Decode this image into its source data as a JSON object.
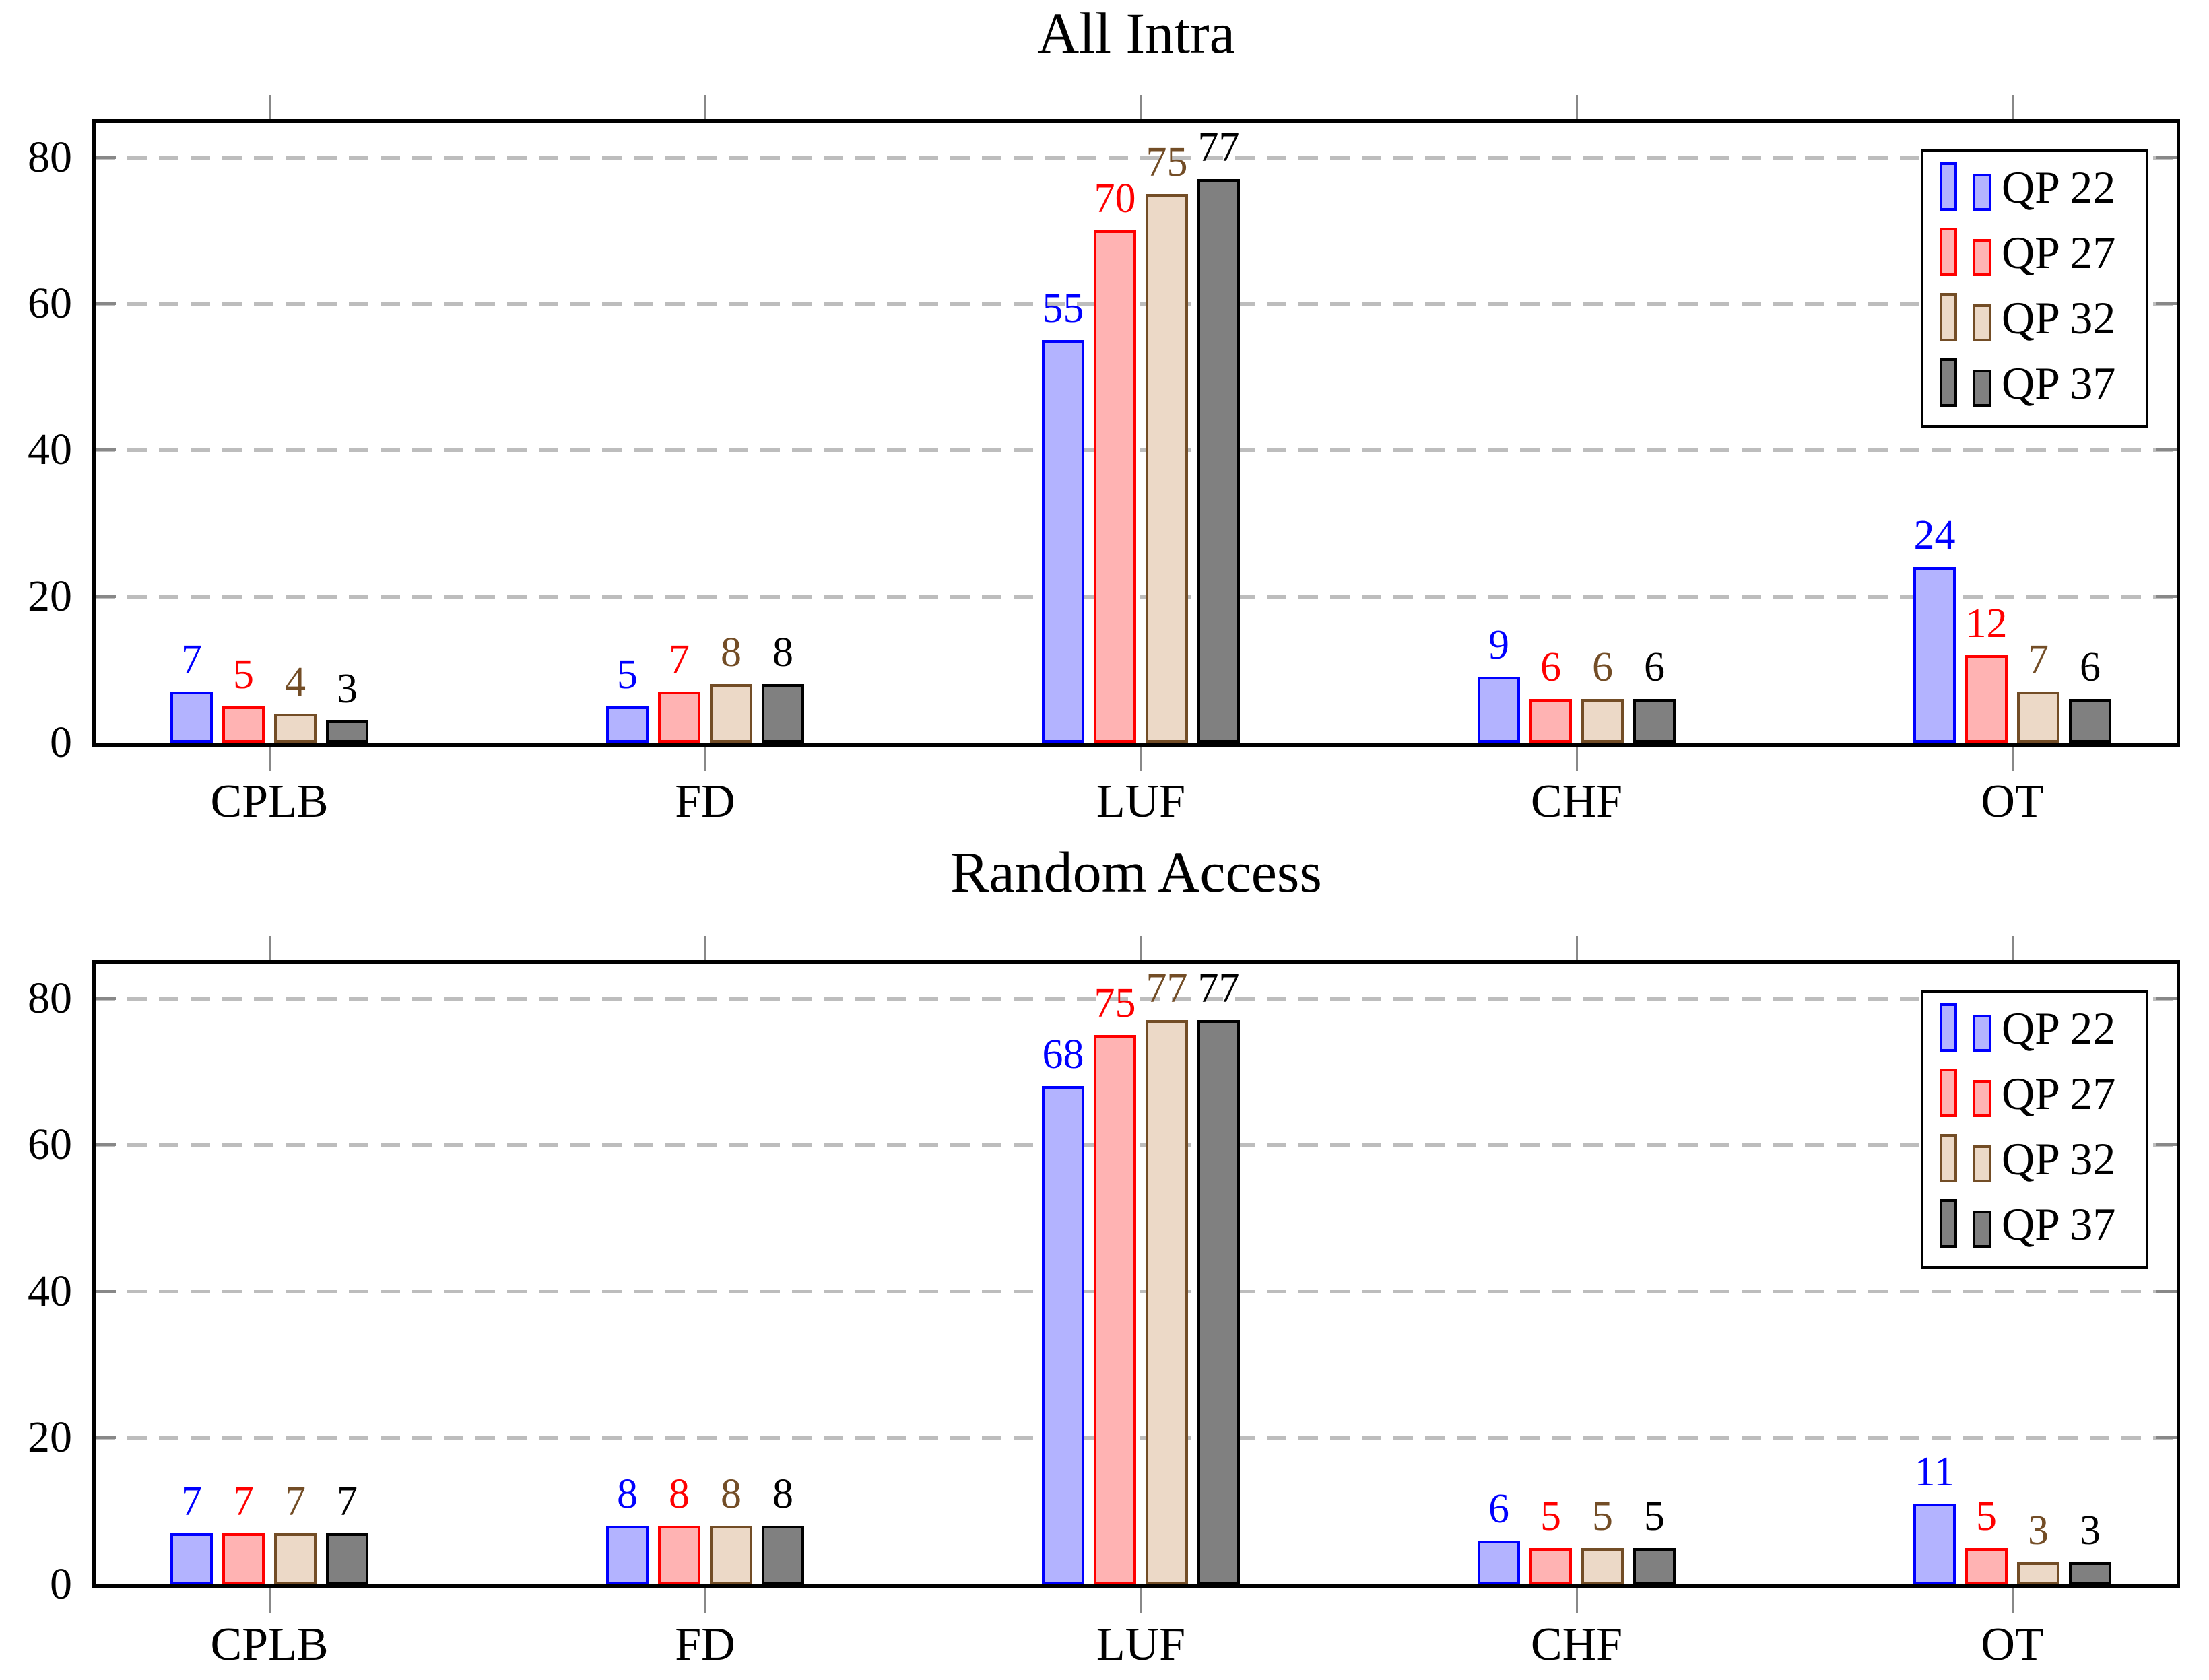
{
  "series_styles": [
    {
      "name": "QP 22",
      "fill": "#b3b3ff",
      "stroke": "#0000ff",
      "label_color": "#0000ff"
    },
    {
      "name": "QP 27",
      "fill": "#ffb3b3",
      "stroke": "#ff0000",
      "label_color": "#ff0000"
    },
    {
      "name": "QP 32",
      "fill": "#ecd9c7",
      "stroke": "#734d26",
      "label_color": "#734d26"
    },
    {
      "name": "QP 37",
      "fill": "#808080",
      "stroke": "#000000",
      "label_color": "#000000"
    }
  ],
  "grid_color": "#bdbdbd",
  "tick_color": "#888888",
  "chart_data": [
    {
      "type": "bar",
      "title": "All Intra",
      "categories": [
        "CPLB",
        "FD",
        "LUF",
        "CHF",
        "OT"
      ],
      "series": [
        {
          "name": "QP 22",
          "values": [
            7,
            5,
            55,
            9,
            24
          ]
        },
        {
          "name": "QP 27",
          "values": [
            5,
            7,
            70,
            6,
            12
          ]
        },
        {
          "name": "QP 32",
          "values": [
            4,
            8,
            75,
            6,
            7
          ]
        },
        {
          "name": "QP 37",
          "values": [
            3,
            8,
            77,
            6,
            6
          ]
        }
      ],
      "xlabel": "",
      "ylabel": "",
      "ylim": [
        0,
        84.75
      ],
      "yticks": [
        0,
        20,
        40,
        60,
        80
      ],
      "grid": "dashed horizontal at 20,40,60,80",
      "value_labels": "above each bar, colored per series",
      "legend_position": "top-right",
      "legend": [
        "QP 22",
        "QP 27",
        "QP 32",
        "QP 37"
      ]
    },
    {
      "type": "bar",
      "title": "Random Access",
      "categories": [
        "CPLB",
        "FD",
        "LUF",
        "CHF",
        "OT"
      ],
      "series": [
        {
          "name": "QP 22",
          "values": [
            7,
            8,
            68,
            6,
            11
          ]
        },
        {
          "name": "QP 27",
          "values": [
            7,
            8,
            75,
            5,
            5
          ]
        },
        {
          "name": "QP 32",
          "values": [
            7,
            8,
            77,
            5,
            3
          ]
        },
        {
          "name": "QP 37",
          "values": [
            7,
            8,
            77,
            5,
            3
          ]
        }
      ],
      "xlabel": "",
      "ylabel": "",
      "ylim": [
        0,
        84.75
      ],
      "yticks": [
        0,
        20,
        40,
        60,
        80
      ],
      "grid": "dashed horizontal at 20,40,60,80",
      "value_labels": "above each bar, colored per series",
      "legend_position": "top-right",
      "legend": [
        "QP 22",
        "QP 27",
        "QP 32",
        "QP 37"
      ]
    }
  ]
}
